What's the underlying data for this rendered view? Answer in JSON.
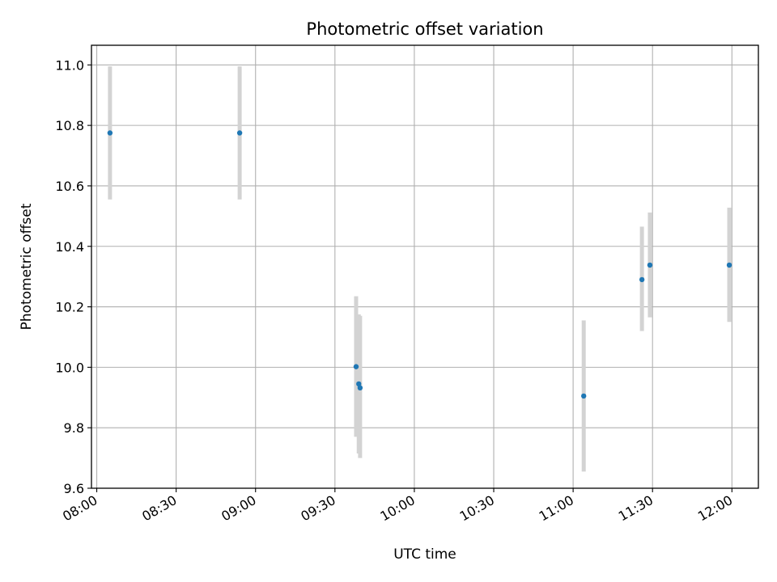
{
  "chart_data": {
    "type": "scatter",
    "title": "Photometric offset variation",
    "xlabel": "UTC time",
    "ylabel": "Photometric offset",
    "x_unit": "time_of_day",
    "xlim": [
      "07:58",
      "12:10"
    ],
    "ylim": [
      9.6,
      11.065
    ],
    "grid": true,
    "x_ticks": [
      "08:00",
      "08:30",
      "09:00",
      "09:30",
      "10:00",
      "10:30",
      "11:00",
      "11:30",
      "12:00"
    ],
    "y_ticks": [
      9.6,
      9.8,
      10.0,
      10.2,
      10.4,
      10.6,
      10.8,
      11.0
    ],
    "colors": {
      "point": "#1f77b4",
      "errorbar": "#d3d3d3",
      "grid": "#b0b0b0"
    },
    "points": [
      {
        "x": "08:05",
        "y": 10.775,
        "ylow": 10.555,
        "yhigh": 10.995
      },
      {
        "x": "08:54",
        "y": 10.775,
        "ylow": 10.555,
        "yhigh": 10.995
      },
      {
        "x": "09:38",
        "y": 10.002,
        "ylow": 9.77,
        "yhigh": 10.235
      },
      {
        "x": "09:39",
        "y": 9.945,
        "ylow": 9.715,
        "yhigh": 10.175
      },
      {
        "x": "09:39.5",
        "y": 9.932,
        "ylow": 9.7,
        "yhigh": 10.17
      },
      {
        "x": "11:04",
        "y": 9.905,
        "ylow": 9.655,
        "yhigh": 10.155
      },
      {
        "x": "11:26",
        "y": 10.29,
        "ylow": 10.12,
        "yhigh": 10.465
      },
      {
        "x": "11:29",
        "y": 10.338,
        "ylow": 10.165,
        "yhigh": 10.512
      },
      {
        "x": "11:59",
        "y": 10.338,
        "ylow": 10.15,
        "yhigh": 10.528
      }
    ]
  }
}
